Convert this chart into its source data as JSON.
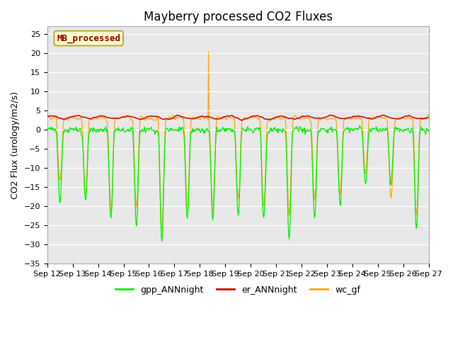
{
  "title": "Mayberry processed CO2 Fluxes",
  "ylabel": "CO2 Flux (urology/m2/s)",
  "ylim": [
    -35,
    27
  ],
  "yticks": [
    -35,
    -30,
    -25,
    -20,
    -15,
    -10,
    -5,
    0,
    5,
    10,
    15,
    20,
    25
  ],
  "legend_entries": [
    "gpp_ANNnight",
    "er_ANNnight",
    "wc_gf"
  ],
  "line_colors": [
    "#00ee00",
    "#cc0000",
    "#ffa500"
  ],
  "mb_label": "MB_processed",
  "mb_box_facecolor": "#ffffcc",
  "mb_box_edgecolor": "#bbaa44",
  "mb_text_color": "#880000",
  "bg_color": "#e8e8e8",
  "fig_bg_color": "#ffffff",
  "title_fontsize": 12,
  "axis_fontsize": 9,
  "tick_fontsize": 8,
  "legend_fontsize": 9
}
